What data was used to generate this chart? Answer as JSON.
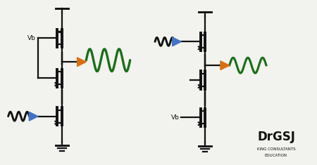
{
  "bg_color": "#f2f2ee",
  "line_color": "#111111",
  "green_color": "#1a6e1a",
  "orange_color": "#d96f10",
  "blue_color": "#4472c4",
  "title_color": "#111111",
  "drgsj_text": "DrGSJ",
  "subtitle1": "KING CONSULTANTS",
  "subtitle2": "EDUCATION",
  "vb_text": "Vb",
  "lw": 1.6,
  "lw_thick": 2.8
}
